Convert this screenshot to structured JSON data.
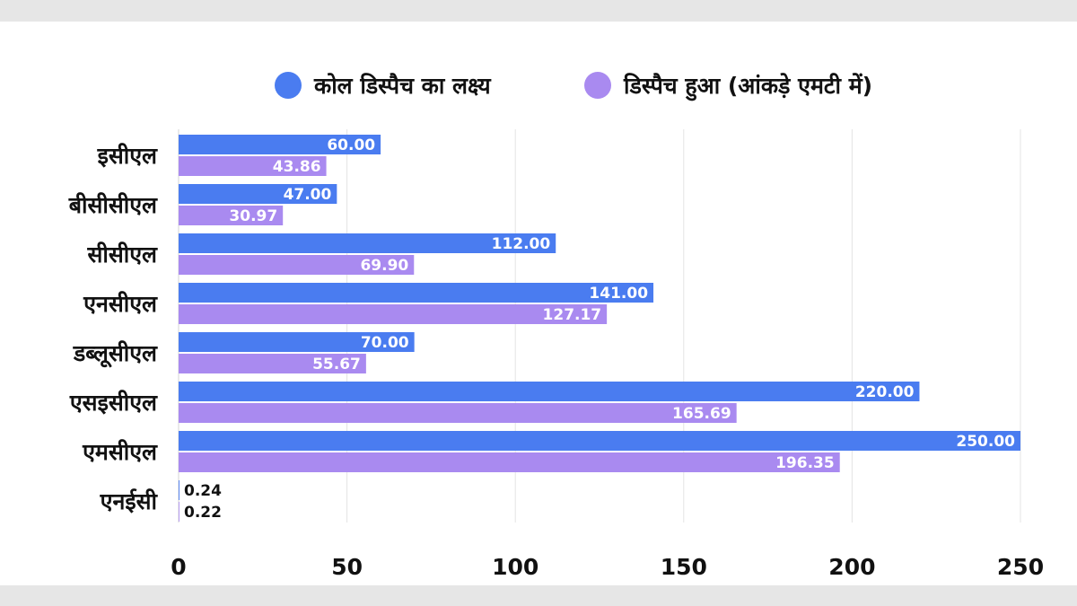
{
  "chart_data": {
    "type": "bar",
    "orientation": "horizontal",
    "categories": [
      "इसीएल",
      "बीसीसीएल",
      "सीसीएल",
      "एनसीएल",
      "डब्लूसीएल",
      "एसइसीएल",
      "एमसीएल",
      "एनईसी"
    ],
    "series": [
      {
        "name": "कोल डिस्पैच का लक्ष्य",
        "color": "#4a7cf0",
        "values": [
          60.0,
          47.0,
          112.0,
          141.0,
          70.0,
          220.0,
          250.0,
          0.24
        ],
        "labels": [
          "60.00",
          "47.00",
          "112.00",
          "141.00",
          "70.00",
          "220.00",
          "250.00",
          "0.24"
        ]
      },
      {
        "name": "डिस्पैच हुआ (आंकड़े एमटी में)",
        "color": "#a98af0",
        "values": [
          43.86,
          30.97,
          69.9,
          127.17,
          55.67,
          165.69,
          196.35,
          0.22
        ],
        "labels": [
          "43.86",
          "30.97",
          "69.90",
          "127.17",
          "55.67",
          "165.69",
          "196.35",
          "0.22"
        ]
      }
    ],
    "xticks": [
      0,
      50,
      100,
      150,
      200,
      250
    ],
    "xlim": [
      0,
      250
    ],
    "grid": true,
    "legend_position": "top"
  }
}
